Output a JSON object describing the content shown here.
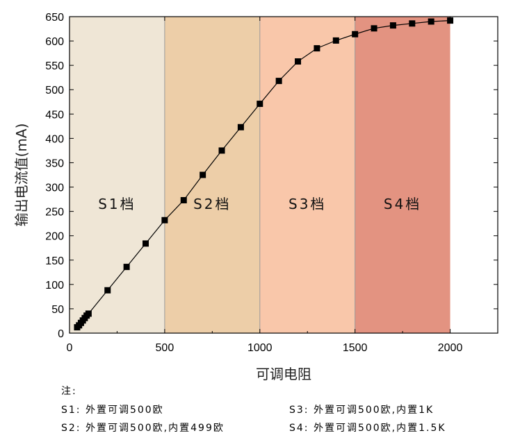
{
  "chart_data": {
    "type": "line",
    "xlabel": "可调电阻",
    "ylabel": "输出电流值(mA)",
    "xlim": [
      0,
      2250
    ],
    "ylim": [
      0,
      650
    ],
    "x_ticks": [
      0,
      500,
      1000,
      1500,
      2000
    ],
    "y_ticks": [
      0,
      50,
      100,
      150,
      200,
      250,
      300,
      350,
      400,
      450,
      500,
      550,
      600,
      650
    ],
    "grid": false,
    "marker": "square",
    "series": [
      {
        "x": [
          40,
          50,
          60,
          70,
          80,
          90,
          100,
          200,
          300,
          400,
          500,
          600,
          700,
          800,
          900,
          1000,
          1100,
          1200,
          1300,
          1400,
          1500,
          1600,
          1700,
          1800,
          1900,
          2000
        ],
        "y": [
          12,
          16,
          21,
          26,
          31,
          36,
          40,
          88,
          136,
          184,
          232,
          273,
          325,
          375,
          423,
          471,
          518,
          558,
          585,
          601,
          614,
          626,
          632,
          636,
          640,
          642
        ]
      }
    ],
    "bands": [
      {
        "label": "S1档",
        "from": 0,
        "to": 500,
        "color": "#efe6d6"
      },
      {
        "label": "S2档",
        "from": 500,
        "to": 1000,
        "color": "#edcea8"
      },
      {
        "label": "S3档",
        "from": 1000,
        "to": 1500,
        "color": "#f9c7aa"
      },
      {
        "label": "S4档",
        "from": 1500,
        "to": 2000,
        "color": "#e39381"
      }
    ]
  },
  "notes": {
    "title": "注:",
    "s1": "S1: 外置可调500欧",
    "s2": "S2: 外置可调500欧,内置499欧",
    "s3": "S3: 外置可调500欧,内置1K",
    "s4": "S4: 外置可调500欧,内置1.5K"
  }
}
